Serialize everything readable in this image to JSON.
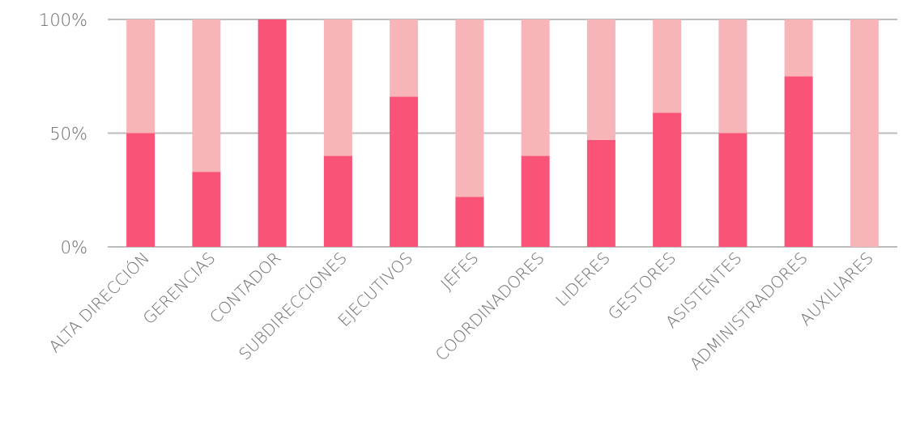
{
  "chart_data": {
    "type": "bar",
    "stacked": true,
    "categories": [
      "ALTA DIRECCIÓN",
      "GERENCIAS",
      "CONTADOR",
      "SUBDIRECCIONES",
      "EJECUTIVOS",
      "JEFES",
      "COORDINADORES",
      "LIDERES",
      "GESTORES",
      "ASISTENTES",
      "ADMINISTRADORES",
      "AUXILIARES"
    ],
    "series": [
      {
        "values": [
          50,
          33,
          100,
          40,
          66,
          22,
          40,
          47,
          59,
          50,
          75,
          0
        ],
        "color": "#f95377"
      },
      {
        "values": [
          50,
          67,
          0,
          60,
          34,
          78,
          60,
          53,
          41,
          50,
          25,
          100
        ],
        "color": "#f7b5ba"
      }
    ],
    "ylim": [
      0,
      100
    ],
    "yticks": [
      "0%",
      "50%",
      "100%"
    ],
    "grid": true,
    "legend": "none"
  }
}
